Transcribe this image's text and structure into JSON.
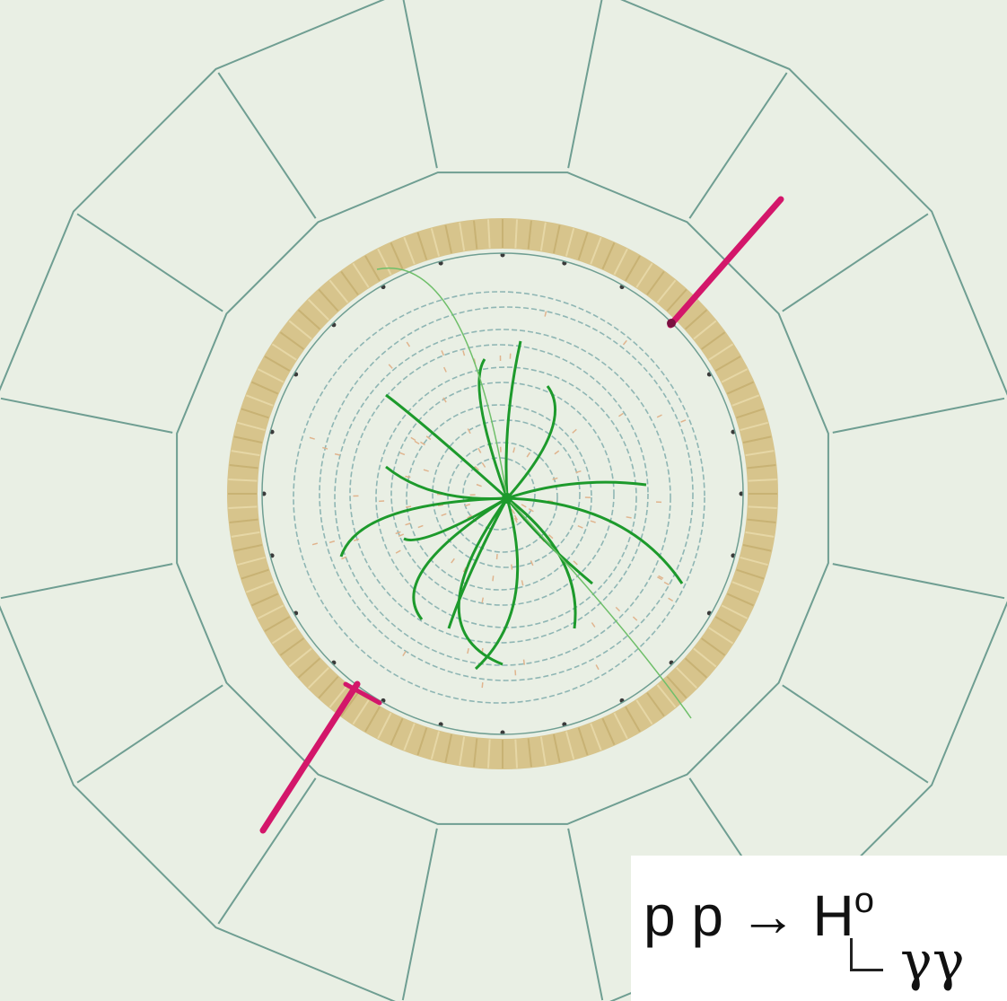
{
  "diagram": {
    "reaction_lhs": "p p",
    "reaction_arrow": "→",
    "reaction_product": "H",
    "reaction_superscript": "o",
    "decay_products": "γγ",
    "colors": {
      "background": "#e9efe4",
      "detector_outline": "#6f9e92",
      "calorimeter_ring": "#d7c48c",
      "tracks": "#1d9a2c",
      "photon": "#d3166a"
    }
  }
}
